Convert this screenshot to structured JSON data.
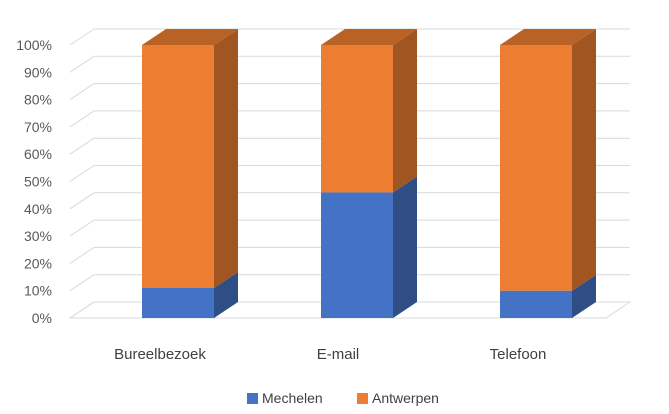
{
  "chart_data": {
    "type": "bar",
    "stacking": "percent",
    "style": "3d-stacked-column",
    "categories": [
      "Bureelbezoek",
      "E-mail",
      "Telefoon"
    ],
    "series": [
      {
        "name": "Mechelen",
        "color": "#4472C4",
        "values": [
          11,
          46,
          10
        ]
      },
      {
        "name": "Antwerpen",
        "color": "#ED7D31",
        "values": [
          89,
          54,
          90
        ]
      }
    ],
    "y_ticks": [
      "0%",
      "10%",
      "20%",
      "30%",
      "40%",
      "50%",
      "60%",
      "70%",
      "80%",
      "90%",
      "100%"
    ],
    "ylim": [
      0,
      100
    ],
    "grid": true,
    "legend_position": "bottom"
  }
}
